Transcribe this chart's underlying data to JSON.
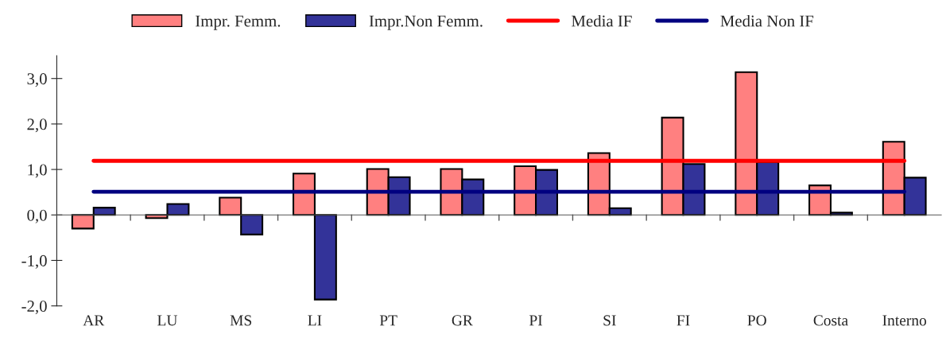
{
  "chart_data": {
    "type": "bar",
    "categories": [
      "AR",
      "LU",
      "MS",
      "LI",
      "PT",
      "GR",
      "PI",
      "SI",
      "FI",
      "PO",
      "Costa",
      "Interno"
    ],
    "series": [
      {
        "name": "Impr. Femm.",
        "color": "#ff8080",
        "values": [
          -0.3,
          -0.07,
          0.38,
          0.91,
          1.01,
          1.01,
          1.07,
          1.36,
          2.14,
          3.14,
          0.65,
          1.61
        ]
      },
      {
        "name": "Impr.Non Femm.",
        "color": "#333399",
        "values": [
          0.16,
          0.24,
          -0.43,
          -1.86,
          0.83,
          0.78,
          0.99,
          0.15,
          1.12,
          1.16,
          0.05,
          0.82
        ]
      },
      {
        "name": "Media IF",
        "type": "line",
        "color": "#ff0000",
        "values": [
          1.19,
          1.19,
          1.19,
          1.19,
          1.19,
          1.19,
          1.19,
          1.19,
          1.19,
          1.19,
          1.19,
          1.19
        ]
      },
      {
        "name": "Media Non IF",
        "type": "line",
        "color": "#000080",
        "values": [
          0.51,
          0.51,
          0.51,
          0.51,
          0.51,
          0.51,
          0.51,
          0.51,
          0.51,
          0.51,
          0.51,
          0.51
        ]
      }
    ],
    "ylim": [
      -2,
      3.5
    ],
    "yticks": [
      {
        "value": -2,
        "label": "-2,0"
      },
      {
        "value": -1,
        "label": "-1,0"
      },
      {
        "value": 0,
        "label": "0,0"
      },
      {
        "value": 1,
        "label": "1,0"
      },
      {
        "value": 2,
        "label": "2,0"
      },
      {
        "value": 3,
        "label": "3,0"
      }
    ],
    "legend": "top"
  }
}
